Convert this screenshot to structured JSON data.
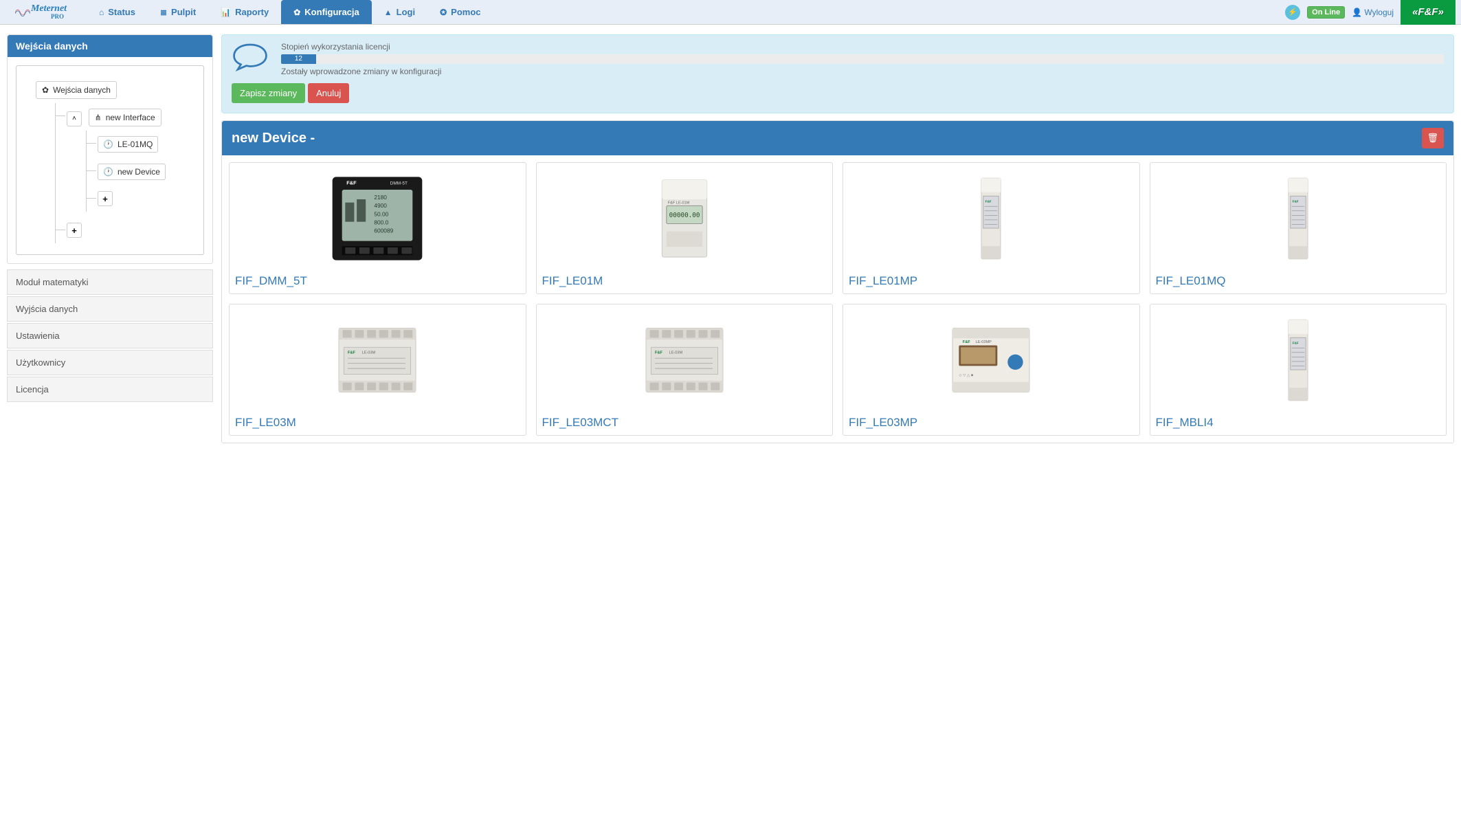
{
  "brand": {
    "name": "Meternet",
    "sub": "PRO",
    "right": "«F&F»"
  },
  "nav": {
    "tabs": [
      {
        "label": "Status",
        "icon": "home"
      },
      {
        "label": "Pulpit",
        "icon": "list"
      },
      {
        "label": "Raporty",
        "icon": "bars"
      },
      {
        "label": "Konfiguracja",
        "icon": "gear",
        "active": true
      },
      {
        "label": "Logi",
        "icon": "warn"
      },
      {
        "label": "Pomoc",
        "icon": "life"
      }
    ],
    "online": "On Line",
    "logout": "Wyloguj"
  },
  "sidebar": {
    "panel_title": "Wejścia danych",
    "root": "Wejścia danych",
    "interface": "new Interface",
    "dev1": "LE-01MQ",
    "dev2": "new Device",
    "items": [
      "Moduł matematyki",
      "Wyjścia danych",
      "Ustawienia",
      "Użytkownicy",
      "Licencja"
    ]
  },
  "alert": {
    "title": "Stopień wykorzystania licencji",
    "progress_text": "12",
    "progress_pct": 3,
    "subtitle": "Zostały wprowadzone zmiany w konfiguracji",
    "save": "Zapisz zmiany",
    "cancel": "Anuluj"
  },
  "device_panel": {
    "title": "new Device -",
    "devices": [
      {
        "label": "FIF_DMM_5T",
        "type": "panel"
      },
      {
        "label": "FIF_LE01M",
        "type": "din-wide"
      },
      {
        "label": "FIF_LE01MP",
        "type": "din-narrow"
      },
      {
        "label": "FIF_LE01MQ",
        "type": "din-narrow"
      },
      {
        "label": "FIF_LE03M",
        "type": "din-3p"
      },
      {
        "label": "FIF_LE03MCT",
        "type": "din-3p"
      },
      {
        "label": "FIF_LE03MP",
        "type": "din-3p-disp"
      },
      {
        "label": "FIF_MBLI4",
        "type": "din-narrow"
      }
    ]
  },
  "colors": {
    "primary": "#337ab7",
    "success": "#5cb85c",
    "danger": "#d9534f",
    "info_bg": "#d9edf7",
    "navbar_bg": "#e8eef7",
    "brand_green": "#0a9a3f"
  }
}
